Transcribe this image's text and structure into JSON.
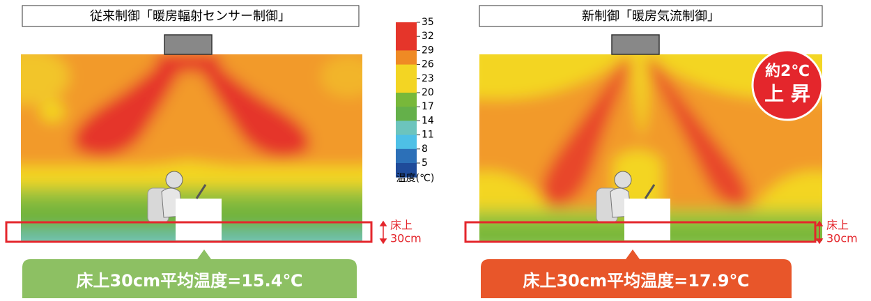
{
  "panels": [
    {
      "title": "従来制御「暖房輻射センサー制御」",
      "floor_label": [
        "床上",
        "30cm"
      ],
      "result": "床上30cm平均温度=15.4℃"
    },
    {
      "title": "新制御「暖房気流制御」",
      "floor_label": [
        "床上",
        "30cm"
      ],
      "result": "床上30cm平均温度=17.9℃",
      "badge": [
        "約2℃",
        "上 昇"
      ]
    }
  ],
  "legend": {
    "ticks": [
      "35",
      "32",
      "29",
      "26",
      "23",
      "20",
      "17",
      "14",
      "11",
      "8",
      "5"
    ],
    "colors": [
      "#e5352a",
      "#e5352a",
      "#ef8a24",
      "#f3d523",
      "#f3d523",
      "#78b83a",
      "#64b04a",
      "#6cc4bd",
      "#4ec0e6",
      "#2c70b8",
      "#1f4b9a"
    ],
    "label": "温度(℃)"
  }
}
